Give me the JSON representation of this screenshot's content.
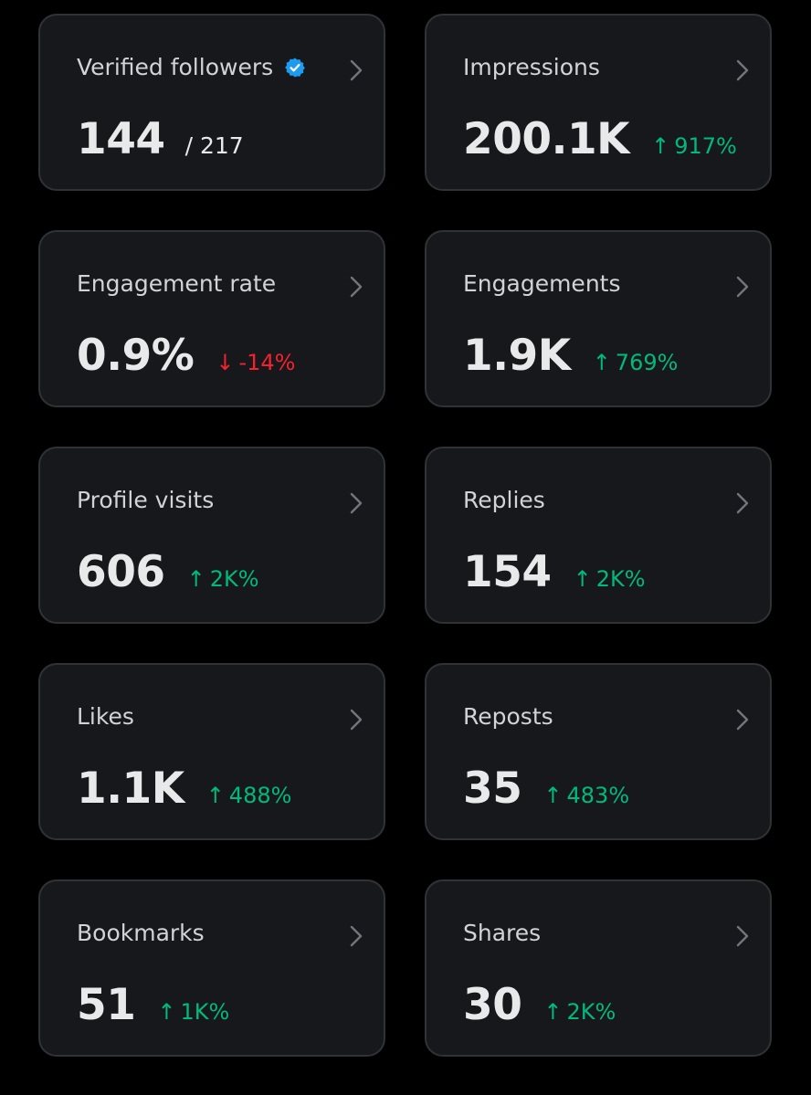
{
  "colors": {
    "background": "#000000",
    "card": "#16181c",
    "border": "#2f3336",
    "positive": "#00ba7c",
    "negative": "#f4212e",
    "verified": "#1d9bf0"
  },
  "cards": [
    {
      "label": "Verified followers",
      "value": "144",
      "total": "/ 217",
      "icon": "verified-badge-icon"
    },
    {
      "label": "Impressions",
      "value": "200.1K",
      "change": "917%",
      "direction": "up"
    },
    {
      "label": "Engagement rate",
      "value": "0.9%",
      "change": "-14%",
      "direction": "down"
    },
    {
      "label": "Engagements",
      "value": "1.9K",
      "change": "769%",
      "direction": "up"
    },
    {
      "label": "Profile visits",
      "value": "606",
      "change": "2K%",
      "direction": "up"
    },
    {
      "label": "Replies",
      "value": "154",
      "change": "2K%",
      "direction": "up"
    },
    {
      "label": "Likes",
      "value": "1.1K",
      "change": "488%",
      "direction": "up"
    },
    {
      "label": "Reposts",
      "value": "35",
      "change": "483%",
      "direction": "up"
    },
    {
      "label": "Bookmarks",
      "value": "51",
      "change": "1K%",
      "direction": "up"
    },
    {
      "label": "Shares",
      "value": "30",
      "change": "2K%",
      "direction": "up"
    }
  ],
  "arrows": {
    "up": "↑",
    "down": "↓"
  }
}
